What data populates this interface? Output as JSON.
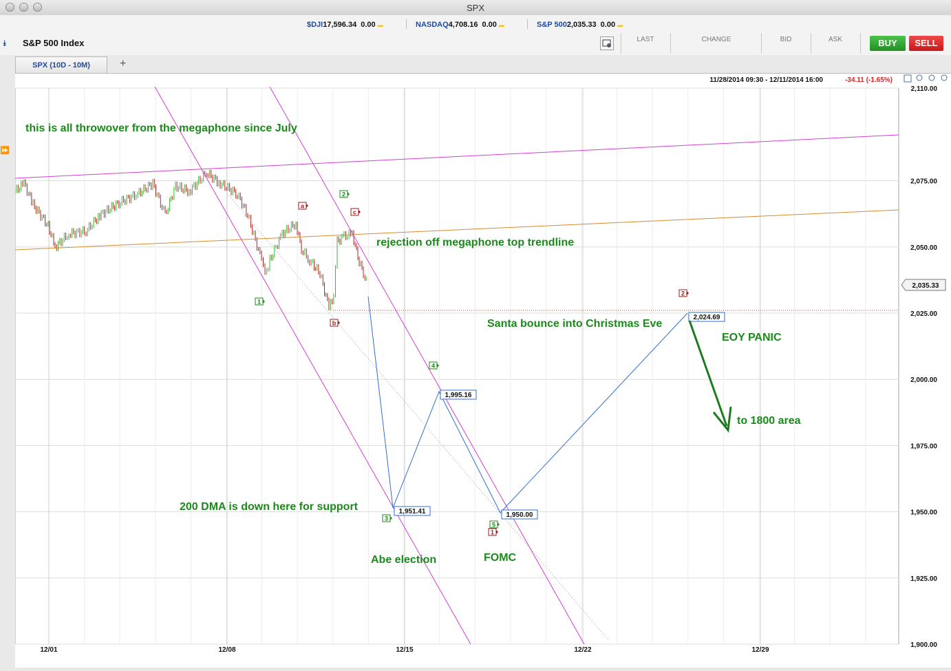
{
  "window": {
    "title": "SPX"
  },
  "tickers": [
    {
      "symbol": "$DJI",
      "price": "17,596.34",
      "change": "0.00"
    },
    {
      "symbol": "NASDAQ",
      "price": "4,708.16",
      "change": "0.00"
    },
    {
      "symbol": "S&P 500",
      "price": "2,035.33",
      "change": "0.00"
    }
  ],
  "instrument": {
    "name": "S&P 500 Index"
  },
  "quote_headers": {
    "last": "LAST",
    "change": "CHANGE",
    "bid": "BID",
    "ask": "ASK"
  },
  "buttons": {
    "buy": "BUY",
    "sell": "SELL",
    "add_tab": "+"
  },
  "tab": {
    "label": "SPX (10D - 10M)"
  },
  "chart_header": {
    "range": "11/28/2014 09:30 - 12/11/2014 16:00",
    "change": "-34.11 (-1.65%)"
  },
  "colors": {
    "buy": "#2ca02c",
    "sell": "#e02020",
    "annotation": "#1a8a1a",
    "trendline": "#d23fd2",
    "orange_line": "#d98a2b",
    "projection": "#2f6fcf",
    "price_up": "#3cb43c",
    "price_down": "#b02020"
  },
  "chart_data": {
    "type": "line",
    "ylim": [
      1900,
      2110
    ],
    "x_ticks": [
      "12/01",
      "12/08",
      "12/15",
      "12/22",
      "12/29"
    ],
    "y_ticks": [
      "2,110.00",
      "2,075.00",
      "2,050.00",
      "2,025.00",
      "2,000.00",
      "1,975.00",
      "1,950.00",
      "1,925.00",
      "1,900.00"
    ],
    "last_price": "2,035.33",
    "projection_labels": [
      "1,951.41",
      "1,995.16",
      "1,950.00",
      "2,024.69"
    ],
    "wave_labels": [
      "1",
      "a",
      "2",
      "c",
      "b",
      "4",
      "3",
      "5",
      "1",
      "2"
    ],
    "annotations": [
      "this is all throwover from the megaphone since July",
      "rejection off megaphone top trendline",
      "Santa bounce into Christmas Eve",
      "EOY PANIC",
      "to 1800 area",
      "200 DMA is down here for support",
      "Abe election",
      "FOMC"
    ]
  }
}
